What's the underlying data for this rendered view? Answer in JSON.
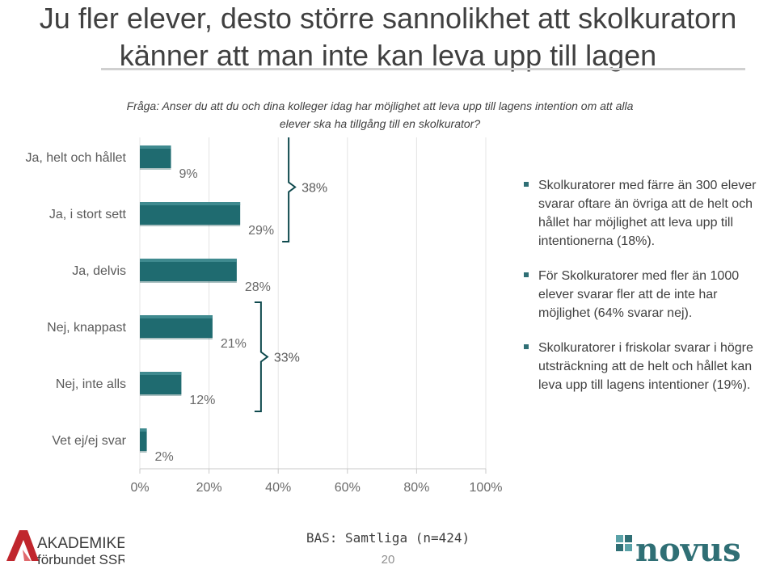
{
  "title": "Ju fler elever, desto större sannolikhet att skolkuratorn känner att man inte kan leva upp till lagen",
  "question": "Fråga: Anser du att du och dina kolleger idag har möjlighet att leva upp till lagens intention om att alla elever ska ha tillgång till en skolkurator?",
  "chart_data": {
    "type": "bar",
    "orientation": "horizontal",
    "categories": [
      "Ja, helt och hållet",
      "Ja, i stort sett",
      "Ja, delvis",
      "Nej, knappast",
      "Nej, inte alls",
      "Vet ej/ej svar"
    ],
    "values": [
      9,
      29,
      28,
      21,
      12,
      2
    ],
    "value_labels": [
      "9%",
      "29%",
      "28%",
      "21%",
      "12%",
      "2%"
    ],
    "xlim": [
      0,
      100
    ],
    "xticks": [
      "0%",
      "20%",
      "40%",
      "60%",
      "80%",
      "100%"
    ],
    "bar_color": "#1f6b70",
    "grid": true,
    "annotations": [
      {
        "label": "38%",
        "groups": [
          "Ja, helt och hållet",
          "Ja, i stort sett"
        ]
      },
      {
        "label": "33%",
        "groups": [
          "Nej, knappast",
          "Nej, inte alls"
        ]
      }
    ]
  },
  "bullets": [
    "Skolkuratorer med färre än 300 elever svarar oftare än övriga att de helt och hållet har möjlighet att leva upp till intentionerna (18%).",
    "För Skolkuratorer med fler än 1000 elever svarar fler att de inte har möjlighet (64% svarar nej).",
    "Skolkuratorer i friskolar svarar i högre utsträckning att de helt och hållet kan leva upp till lagens intentioner (19%)."
  ],
  "footer": {
    "base": "BAS: Samtliga (n=424)",
    "page_number": "20"
  },
  "logos": {
    "akademiker_line1": "AKADEMIKER",
    "akademiker_line2": "förbundet SSR",
    "novus": "novus",
    "akademiker_color": "#c0262d",
    "novus_color": "#2f6f75"
  }
}
